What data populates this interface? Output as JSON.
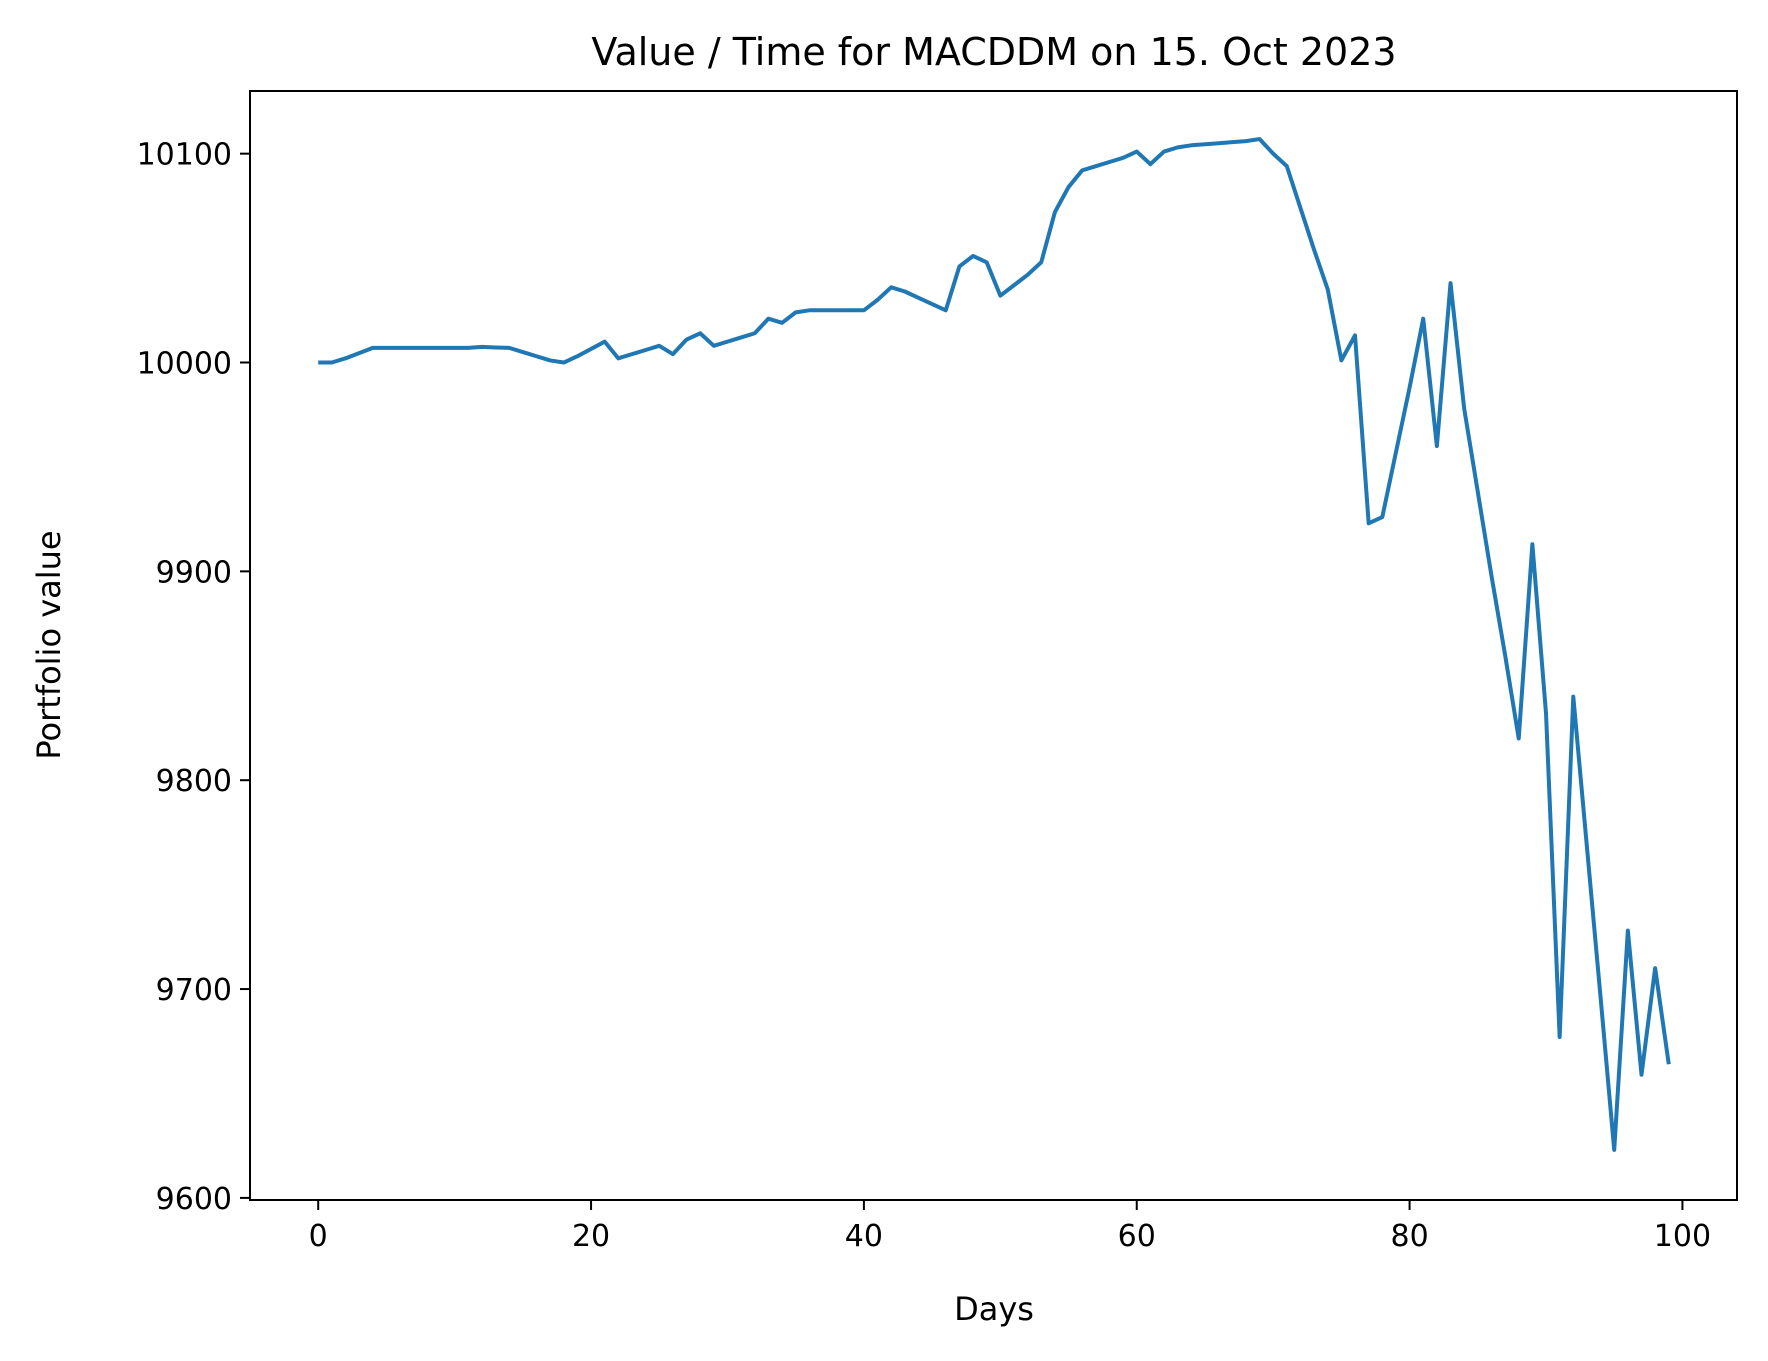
{
  "chart_data": {
    "type": "line",
    "title": "Value / Time for MACDDM on 15. Oct 2023",
    "xlabel": "Days",
    "ylabel": "Portfolio value",
    "xlim": [
      -5,
      104
    ],
    "ylim": [
      9599,
      10130
    ],
    "xticks": [
      0,
      20,
      40,
      60,
      80,
      100
    ],
    "yticks": [
      9600,
      9700,
      9800,
      9900,
      10000,
      10100
    ],
    "grid": false,
    "legend": "none",
    "line_color": "#1f77b4",
    "series": [
      {
        "x": [
          0,
          1,
          2,
          3,
          4,
          5,
          6,
          7,
          8,
          9,
          10,
          11,
          12,
          13,
          14,
          15,
          16,
          17,
          18,
          19,
          20,
          21,
          22,
          23,
          24,
          25,
          26,
          27,
          28,
          29,
          30,
          31,
          32,
          33,
          34,
          35,
          36,
          37,
          38,
          39,
          40,
          41,
          42,
          43,
          44,
          45,
          46,
          47,
          48,
          49,
          50,
          51,
          52,
          53,
          54,
          55,
          56,
          57,
          58,
          59,
          60,
          61,
          62,
          63,
          64,
          65,
          66,
          67,
          68,
          69,
          70,
          71,
          72,
          73,
          74,
          75,
          76,
          77,
          78,
          79,
          80,
          81,
          82,
          83,
          84,
          85,
          86,
          87,
          88,
          89,
          90,
          91,
          92,
          93,
          94,
          95,
          96,
          97,
          98,
          99
        ],
        "y": [
          10000,
          10000,
          10002,
          10004.5,
          10007,
          10007,
          10007,
          10007,
          10007,
          10007,
          10007,
          10007,
          10007.5,
          10007.2,
          10007,
          10005,
          10003,
          10001,
          10000,
          10003,
          10006.5,
          10010,
          10002,
          10004,
          10006,
          10008,
          10004,
          10011,
          10014,
          10008,
          10010,
          10012,
          10014,
          10021,
          10019,
          10024,
          10025,
          10025,
          10025,
          10025,
          10025,
          10030,
          10036,
          10034,
          10031,
          10028,
          10025,
          10046,
          10051,
          10048,
          10032,
          10037,
          10042,
          10048,
          10072,
          10084,
          10092,
          10094,
          10096,
          10098,
          10101,
          10095,
          10101,
          10103,
          10104,
          10104.5,
          10105,
          10105.5,
          10106,
          10107,
          10100,
          10094,
          10074,
          10054,
          10035,
          10001,
          10013,
          9923,
          9926,
          9957,
          9988,
          10021,
          9960,
          10038,
          9978,
          9938,
          9898,
          9860,
          9820,
          9913,
          9832,
          9677,
          9840,
          9768,
          9696,
          9623,
          9728,
          9659,
          9710,
          9664
        ]
      }
    ]
  }
}
